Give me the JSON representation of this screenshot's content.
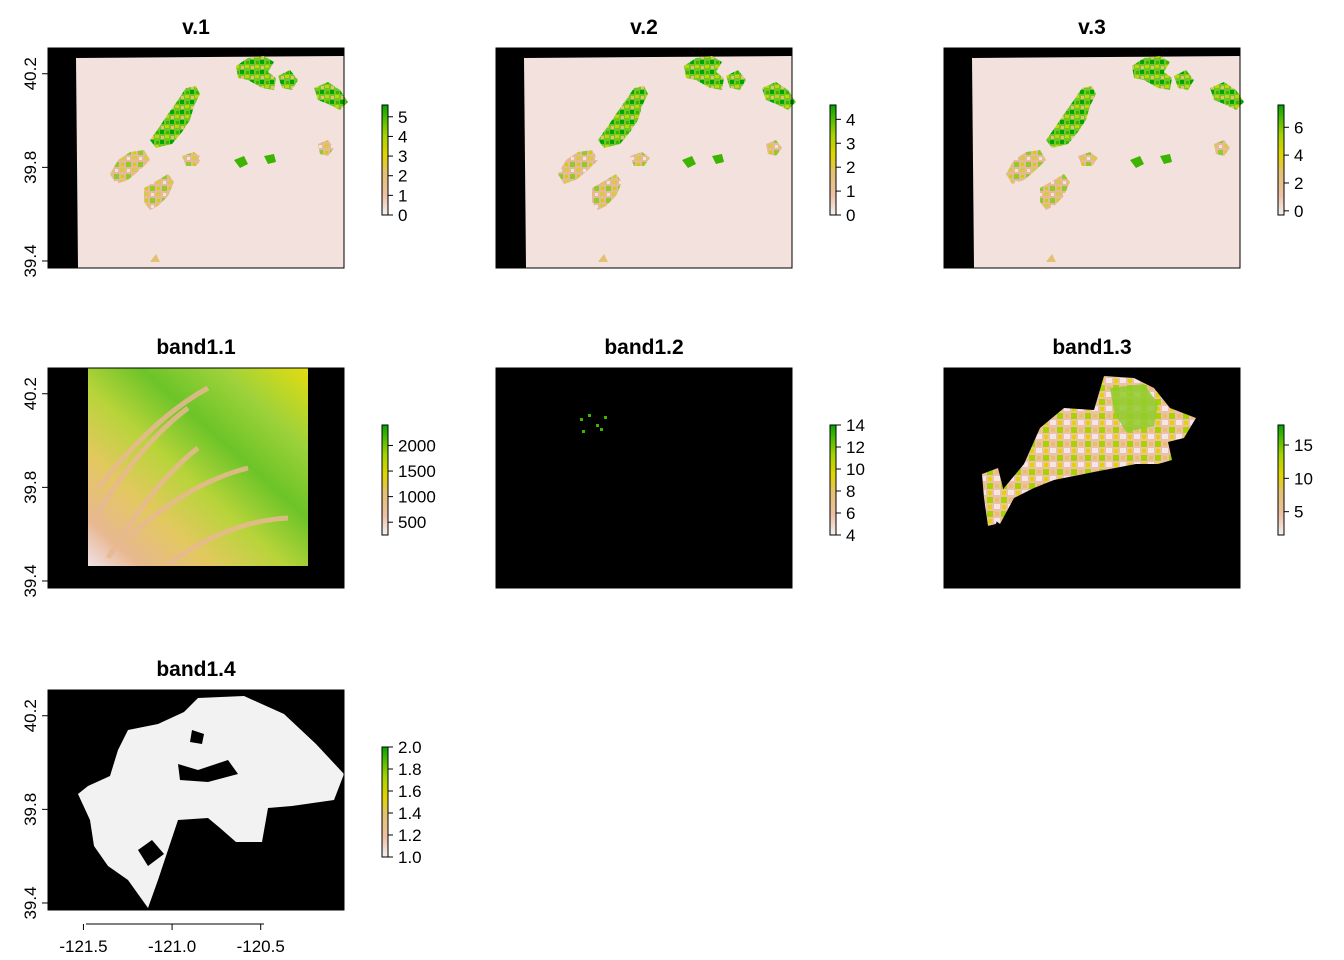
{
  "figure": {
    "description_free": true
  },
  "chart_data": [
    {
      "type": "heatmap",
      "title": "v.1",
      "y_ticks": [
        "39.4",
        "39.8",
        "40.2"
      ],
      "y_tick_values": [
        39.4,
        39.8,
        40.2
      ],
      "legend": {
        "min": 0,
        "max": 5.6,
        "ticks": [
          0,
          1,
          2,
          3,
          4,
          5
        ],
        "labels": [
          "0",
          "1",
          "2",
          "3",
          "4",
          "5"
        ]
      },
      "background": "#f2e1dd"
    },
    {
      "type": "heatmap",
      "title": "v.2",
      "legend": {
        "min": 0,
        "max": 4.6,
        "ticks": [
          0,
          1,
          2,
          3,
          4
        ],
        "labels": [
          "0",
          "1",
          "2",
          "3",
          "4"
        ]
      },
      "background": "#f2e1dd"
    },
    {
      "type": "heatmap",
      "title": "v.3",
      "legend": {
        "min": -0.3,
        "max": 7.6,
        "ticks": [
          0,
          2,
          4,
          6
        ],
        "labels": [
          "0",
          "2",
          "4",
          "6"
        ]
      },
      "background": "#f2e1dd"
    },
    {
      "type": "heatmap",
      "title": "band1.1",
      "y_ticks": [
        "39.4",
        "39.8",
        "40.2"
      ],
      "y_tick_values": [
        39.4,
        39.8,
        40.2
      ],
      "legend": {
        "min": 250,
        "max": 2400,
        "ticks": [
          500,
          1000,
          1500,
          2000
        ],
        "labels": [
          "500",
          "1000",
          "1500",
          "2000"
        ]
      }
    },
    {
      "type": "heatmap",
      "title": "band1.2",
      "legend": {
        "min": 4,
        "max": 14,
        "ticks": [
          4,
          6,
          8,
          10,
          12,
          14
        ],
        "labels": [
          "4",
          "6",
          "8",
          "10",
          "12",
          "14"
        ]
      }
    },
    {
      "type": "heatmap",
      "title": "band1.3",
      "legend": {
        "min": 1.5,
        "max": 18,
        "ticks": [
          5,
          10,
          15
        ],
        "labels": [
          "5",
          "10",
          "15"
        ]
      }
    },
    {
      "type": "heatmap",
      "title": "band1.4",
      "y_ticks": [
        "39.4",
        "39.8",
        "40.2"
      ],
      "y_tick_values": [
        39.4,
        39.8,
        40.2
      ],
      "x_ticks": [
        "-121.5",
        "-121.0",
        "-120.5"
      ],
      "x_tick_values": [
        -121.5,
        -121.0,
        -120.5
      ],
      "legend": {
        "min": 1.0,
        "max": 2.0,
        "ticks": [
          1.0,
          1.2,
          1.4,
          1.6,
          1.8,
          2.0
        ],
        "labels": [
          "1.0",
          "1.2",
          "1.4",
          "1.6",
          "1.8",
          "2.0"
        ]
      }
    }
  ],
  "colors": {
    "ramp": [
      "#f2f2f2",
      "#eec0a6",
      "#e6c072",
      "#dfd500",
      "#a8d300",
      "#59bf00",
      "#00a600"
    ],
    "mask": "#000000",
    "pale": "#f2e1dd",
    "white_fill": "#f2f2f2"
  }
}
